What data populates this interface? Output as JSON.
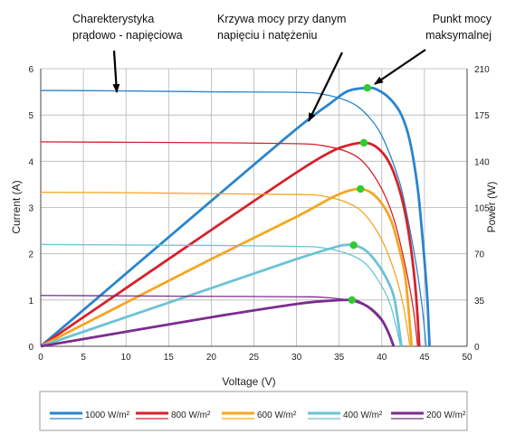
{
  "chart_data": {
    "type": "line",
    "xlabel": "Voltage (V)",
    "ylabel_left": "Current (A)",
    "ylabel_right": "Power (W)",
    "xlim": [
      0,
      50
    ],
    "ylim_left": [
      0,
      6
    ],
    "ylim_right": [
      0,
      210
    ],
    "x_ticks": [
      "0",
      "5",
      "10",
      "15",
      "20",
      "25",
      "30",
      "35",
      "40",
      "45",
      "50"
    ],
    "y_left_ticks": [
      "0",
      "1",
      "2",
      "3",
      "4",
      "5",
      "6"
    ],
    "y_right_ticks": [
      "0",
      "35",
      "70",
      "105",
      "140",
      "175",
      "210"
    ],
    "grid": true,
    "legend_position": "bottom",
    "annotations": [
      {
        "id": "iv",
        "lines": [
          "Charekterystyka",
          "prądowo - napięciowa"
        ],
        "points_to": {
          "x": 9,
          "y": 5.5
        }
      },
      {
        "id": "power",
        "lines": [
          "Krzywa mocy przy danym",
          "napięciu i natężeniu"
        ],
        "points_to": {
          "x": 31,
          "y": 4.9
        }
      },
      {
        "id": "mpp",
        "lines": [
          "Punkt mocy",
          "maksymalnej"
        ],
        "points_to": {
          "x": 38.3,
          "y": 5.58
        }
      }
    ],
    "series": [
      {
        "name": "1000 W/m²",
        "color": "#2a85cc",
        "current": [
          [
            0,
            5.53
          ],
          [
            10,
            5.52
          ],
          [
            20,
            5.5
          ],
          [
            30,
            5.49
          ],
          [
            33,
            5.45
          ],
          [
            36,
            5.3
          ],
          [
            38,
            5.05
          ],
          [
            40,
            4.55
          ],
          [
            42,
            3.6
          ],
          [
            43,
            2.8
          ],
          [
            44,
            1.8
          ],
          [
            44.7,
            0.9
          ],
          [
            45.2,
            0
          ]
        ],
        "power": [
          [
            0,
            0
          ],
          [
            10,
            55
          ],
          [
            20,
            110
          ],
          [
            30,
            164.5
          ],
          [
            34,
            184
          ],
          [
            36,
            193
          ],
          [
            38.3,
            195.5
          ],
          [
            39.5,
            194
          ],
          [
            41,
            187
          ],
          [
            42.3,
            175
          ],
          [
            43.3,
            155
          ],
          [
            44.2,
            120
          ],
          [
            44.8,
            80
          ],
          [
            45.3,
            40
          ],
          [
            45.6,
            0
          ]
        ],
        "mpp": {
          "voltage": 38.3,
          "power": 195.5
        }
      },
      {
        "name": "800 W/m²",
        "color": "#d4232b",
        "current": [
          [
            0,
            4.42
          ],
          [
            10,
            4.41
          ],
          [
            20,
            4.4
          ],
          [
            30,
            4.38
          ],
          [
            33,
            4.34
          ],
          [
            36,
            4.2
          ],
          [
            38,
            3.95
          ],
          [
            40,
            3.4
          ],
          [
            41.5,
            2.7
          ],
          [
            42.8,
            1.7
          ],
          [
            43.7,
            0.8
          ],
          [
            44.2,
            0
          ]
        ],
        "power": [
          [
            0,
            0
          ],
          [
            10,
            44
          ],
          [
            20,
            88
          ],
          [
            30,
            131.5
          ],
          [
            34,
            147
          ],
          [
            36,
            152
          ],
          [
            37.9,
            154
          ],
          [
            39.2,
            151.5
          ],
          [
            40.5,
            143
          ],
          [
            41.6,
            128
          ],
          [
            42.6,
            105
          ],
          [
            43.4,
            75
          ],
          [
            44,
            40
          ],
          [
            44.4,
            0
          ]
        ],
        "mpp": {
          "voltage": 37.9,
          "power": 154
        }
      },
      {
        "name": "600 W/m²",
        "color": "#f5a623",
        "current": [
          [
            0,
            3.33
          ],
          [
            10,
            3.32
          ],
          [
            20,
            3.3
          ],
          [
            30,
            3.28
          ],
          [
            33,
            3.25
          ],
          [
            36,
            3.1
          ],
          [
            38,
            2.85
          ],
          [
            40,
            2.3
          ],
          [
            41.5,
            1.6
          ],
          [
            42.5,
            0.9
          ],
          [
            43.3,
            0
          ]
        ],
        "power": [
          [
            0,
            0
          ],
          [
            10,
            33
          ],
          [
            20,
            66
          ],
          [
            30,
            98
          ],
          [
            34,
            112
          ],
          [
            36,
            117.5
          ],
          [
            37.5,
            119
          ],
          [
            38.8,
            116
          ],
          [
            40,
            108
          ],
          [
            41.1,
            95
          ],
          [
            42,
            75
          ],
          [
            42.8,
            50
          ],
          [
            43.5,
            0
          ]
        ],
        "mpp": {
          "voltage": 37.5,
          "power": 119
        }
      },
      {
        "name": "400 W/m²",
        "color": "#6cc3d5",
        "current": [
          [
            0,
            2.2
          ],
          [
            10,
            2.19
          ],
          [
            20,
            2.18
          ],
          [
            30,
            2.16
          ],
          [
            33,
            2.13
          ],
          [
            36,
            2.0
          ],
          [
            38,
            1.8
          ],
          [
            39.5,
            1.45
          ],
          [
            41,
            0.9
          ],
          [
            42.2,
            0
          ]
        ],
        "power": [
          [
            0,
            0
          ],
          [
            10,
            22
          ],
          [
            20,
            44
          ],
          [
            30,
            66
          ],
          [
            34,
            74
          ],
          [
            35.5,
            76.5
          ],
          [
            36.7,
            76.5
          ],
          [
            38,
            73
          ],
          [
            39.2,
            65
          ],
          [
            40.5,
            52
          ],
          [
            41.5,
            35
          ],
          [
            42.3,
            0
          ]
        ],
        "mpp": {
          "voltage": 36.7,
          "power": 76.5
        }
      },
      {
        "name": "200 W/m²",
        "color": "#7b2d8e",
        "current": [
          [
            0,
            1.1
          ],
          [
            10,
            1.09
          ],
          [
            20,
            1.08
          ],
          [
            30,
            1.07
          ],
          [
            33,
            1.06
          ],
          [
            36,
            1.0
          ],
          [
            38,
            0.88
          ],
          [
            39.5,
            0.65
          ],
          [
            40.5,
            0.4
          ],
          [
            41.3,
            0
          ]
        ],
        "power": [
          [
            0,
            0
          ],
          [
            10,
            11
          ],
          [
            20,
            22
          ],
          [
            30,
            32
          ],
          [
            34,
            34.5
          ],
          [
            36.5,
            35
          ],
          [
            37.5,
            33
          ],
          [
            38.8,
            28
          ],
          [
            40,
            20
          ],
          [
            40.8,
            10
          ],
          [
            41.4,
            0
          ]
        ],
        "mpp": {
          "voltage": 36.5,
          "power": 35
        }
      }
    ]
  }
}
